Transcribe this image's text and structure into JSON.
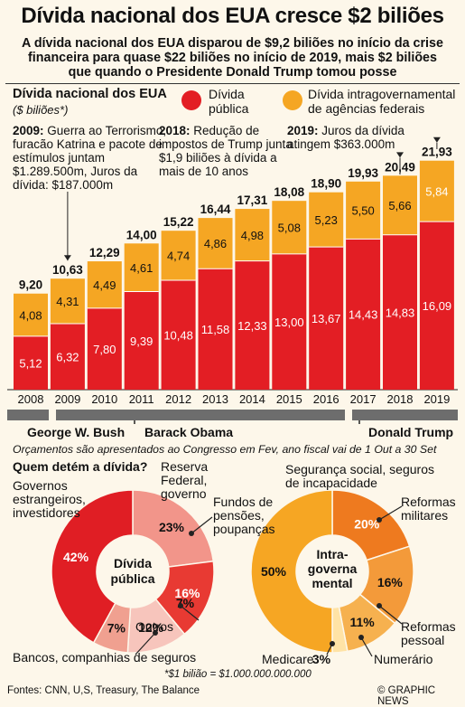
{
  "title": "Dívida nacional dos EUA cresce $2 biliões",
  "subtitle": "A dívida nacional dos EUA disparou de $9,2 biliões no início da crise financeira para quase $22 biliões no início de 2019, mais $2 biliões que quando o Presidente Donald Trump tomou posse",
  "chart_heading": "Dívida nacional dos EUA",
  "chart_unit": "($ biliões*)",
  "legend": {
    "public": "Dívida pública",
    "intragov": "Dívida intragovernamental de agências federais"
  },
  "colors": {
    "public": "#e31e24",
    "intragov": "#f5a623",
    "background": "#fdf7ea",
    "president_bar": "#6d6d6d"
  },
  "annotations": [
    {
      "year": "2009:",
      "text": "Guerra ao Terrorismo, furacão Katrina e pacote de estímulos juntam $1.289.500m, Juros da dívida: $187.000m"
    },
    {
      "year": "2018:",
      "text": "Redução de impostos de Trump junta $1,9 biliões à dívida a mais de 10 anos"
    },
    {
      "year": "2019:",
      "text": "Juros da dívida atingem $363.000m"
    }
  ],
  "presidents": [
    "George W. Bush",
    "Barack Obama",
    "Donald Trump"
  ],
  "budget_note": "Orçamentos são apresentados ao Congresso em Fev, ano fiscal vai de 1 Out a 30 Set",
  "who_holds": "Quem detém a dívida?",
  "public_donut_label": "Dívida pública",
  "intragov_donut_label": "Intra-governamental",
  "public_segment_labels": {
    "fed": "Reserva Federal, governo",
    "funds": "Fundos de pensões, poupanças",
    "others": "Outros",
    "banks": "Bancos, companhias de seguros",
    "foreign": "Governos estrangeiros, investidores"
  },
  "intragov_segment_labels": {
    "social": "Segurança social, seguros de incapacidade",
    "military": "Reformas militares",
    "staff": "Reformas pessoal",
    "cash": "Numerário",
    "medicare": "Medicare"
  },
  "footnote": "*$1 bilião = $1.000.000.000.000",
  "sources": "Fontes: CNN, U,S, Treasury, The Balance",
  "credit": "© GRAPHIC NEWS",
  "chart_data": [
    {
      "type": "bar",
      "stacked": true,
      "title": "Dívida nacional dos EUA",
      "ylabel": "($ biliões*)",
      "categories": [
        "2008",
        "2009",
        "2010",
        "2011",
        "2012",
        "2013",
        "2014",
        "2015",
        "2016",
        "2017",
        "2018",
        "2019"
      ],
      "series": [
        {
          "name": "Dívida pública",
          "values": [
            5.12,
            6.32,
            7.8,
            9.39,
            10.48,
            11.58,
            12.33,
            13.0,
            13.67,
            14.43,
            14.83,
            16.09
          ],
          "labels": [
            "5,12",
            "6,32",
            "7,80",
            "9,39",
            "10,48",
            "11,58",
            "12,33",
            "13,00",
            "13,67",
            "14,43",
            "14,83",
            "16,09"
          ]
        },
        {
          "name": "Dívida intragovernamental de agências federais",
          "values": [
            4.08,
            4.31,
            4.49,
            4.61,
            4.74,
            4.86,
            4.98,
            5.08,
            5.23,
            5.5,
            5.66,
            5.84
          ],
          "labels": [
            "4,08",
            "4,31",
            "4,49",
            "4,61",
            "4,74",
            "4,86",
            "4,98",
            "5,08",
            "5,23",
            "5,50",
            "5,66",
            "5,84"
          ]
        }
      ],
      "totals": [
        9.2,
        10.63,
        12.29,
        14.0,
        15.22,
        16.44,
        17.31,
        18.08,
        18.9,
        19.93,
        20.49,
        21.93
      ],
      "total_labels": [
        "9,20",
        "10,63",
        "12,29",
        "14,00",
        "15,22",
        "16,44",
        "17,31",
        "18,08",
        "18,90",
        "19,93",
        "20,49",
        "21,93"
      ],
      "ylim": [
        0,
        22
      ]
    },
    {
      "type": "pie",
      "title": "Dívida pública",
      "categories": [
        "Reserva Federal, governo",
        "Fundos de pensões, poupanças",
        "Outros",
        "Bancos, companhias de seguros",
        "Governos estrangeiros, investidores"
      ],
      "values": [
        23,
        16,
        12,
        7,
        42
      ],
      "labels": [
        "23%",
        "16%",
        "12%",
        "7%",
        "42%"
      ]
    },
    {
      "type": "pie",
      "title": "Intra-governamental",
      "categories": [
        "Reformas militares",
        "Reformas pessoal",
        "Numerário",
        "Medicare",
        "Segurança social, seguros de incapacidade"
      ],
      "values": [
        20,
        16,
        11,
        3,
        50
      ],
      "labels": [
        "20%",
        "16%",
        "11%",
        "3%",
        "50%"
      ]
    }
  ]
}
